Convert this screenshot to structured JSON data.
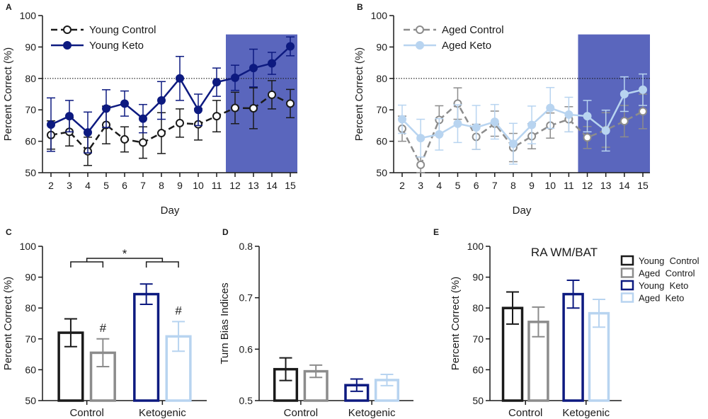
{
  "colors": {
    "young_control": "#1a1a1a",
    "aged_control": "#8c8c8c",
    "young_keto": "#0d1a80",
    "aged_keto": "#b8d4f0",
    "shade": "#5a66bd"
  },
  "chart_data": [
    {
      "panel": "A",
      "type": "line",
      "xlabel": "Day",
      "ylabel": "Percent Correct (%)",
      "ylim": [
        50,
        100
      ],
      "yticks": [
        "50",
        "60",
        "70",
        "80",
        "90",
        "100"
      ],
      "x": [
        "2",
        "3",
        "4",
        "5",
        "6",
        "7",
        "8",
        "9",
        "10",
        "11",
        "12",
        "13",
        "14",
        "15"
      ],
      "reference_line": 80,
      "shaded_from_day": 11.5,
      "series": [
        {
          "name": "Young Control",
          "key": "young_control",
          "style": "dashed-open",
          "values": [
            62.0,
            63.0,
            56.8,
            65.2,
            60.6,
            59.6,
            62.6,
            65.8,
            65.4,
            68.0,
            70.6,
            70.5,
            74.8,
            72.0
          ],
          "errors": [
            4.5,
            4.5,
            4.5,
            6.0,
            4.0,
            5.0,
            6.5,
            4.5,
            5.0,
            5.0,
            5.0,
            6.5,
            4.5,
            4.5
          ]
        },
        {
          "name": "Young Keto",
          "key": "young_keto",
          "style": "solid-filled",
          "values": [
            65.3,
            68.0,
            62.8,
            70.4,
            72.0,
            67.2,
            73.0,
            80.0,
            70.0,
            78.8,
            80.2,
            83.3,
            84.8,
            90.2
          ],
          "errors": [
            8.5,
            5.0,
            6.5,
            6.0,
            4.0,
            4.5,
            6.0,
            7.0,
            5.0,
            4.5,
            4.0,
            6.0,
            3.5,
            3.0
          ]
        }
      ]
    },
    {
      "panel": "B",
      "type": "line",
      "xlabel": "Day",
      "ylabel": "Percent Correct (%)",
      "ylim": [
        50,
        100
      ],
      "yticks": [
        "50",
        "60",
        "70",
        "80",
        "90",
        "100"
      ],
      "x": [
        "2",
        "3",
        "4",
        "5",
        "6",
        "7",
        "8",
        "9",
        "10",
        "11",
        "12",
        "13",
        "14",
        "15"
      ],
      "reference_line": 80,
      "shaded_from_day": 11.5,
      "series": [
        {
          "name": "Aged Control",
          "key": "aged_control",
          "style": "dashed-open",
          "values": [
            64.0,
            52.5,
            66.8,
            72.0,
            61.4,
            65.6,
            58.0,
            61.6,
            65.0,
            67.0,
            61.2,
            63.6,
            66.4,
            69.5
          ],
          "errors": [
            4.0,
            2.5,
            4.5,
            5.0,
            4.0,
            4.0,
            4.5,
            4.0,
            4.0,
            4.0,
            3.5,
            5.5,
            5.0,
            5.5
          ]
        },
        {
          "name": "Aged Keto",
          "key": "aged_keto",
          "style": "solid-filled",
          "values": [
            67.0,
            61.0,
            62.2,
            65.6,
            64.4,
            66.2,
            59.2,
            65.2,
            70.6,
            68.5,
            68.0,
            63.4,
            75.0,
            76.4
          ],
          "errors": [
            4.5,
            6.0,
            5.0,
            6.0,
            7.0,
            5.5,
            6.5,
            6.0,
            6.5,
            5.5,
            5.0,
            6.5,
            5.5,
            5.0
          ]
        }
      ]
    },
    {
      "panel": "C",
      "type": "bar",
      "ylabel": "Percent Correct (%)",
      "ylim": [
        50,
        100
      ],
      "yticks": [
        "50",
        "60",
        "70",
        "80",
        "90",
        "100"
      ],
      "categories": [
        "Control",
        "Ketogenic"
      ],
      "series": [
        {
          "name": "Young Control",
          "key": "young_control",
          "category": 0,
          "value": 72.0,
          "error": 4.5
        },
        {
          "name": "Aged Control",
          "key": "aged_control",
          "category": 0,
          "value": 65.5,
          "error": 4.5
        },
        {
          "name": "Young Keto",
          "key": "young_keto",
          "category": 1,
          "value": 84.5,
          "error": 3.3
        },
        {
          "name": "Aged Keto",
          "key": "aged_keto",
          "category": 1,
          "value": 70.8,
          "error": 4.8
        }
      ],
      "annotations": {
        "comparison": "*",
        "aged_vs_young": "#"
      }
    },
    {
      "panel": "D",
      "type": "bar",
      "ylabel": "Turn Bias Indices",
      "ylim": [
        0.5,
        0.8
      ],
      "yticks": [
        "0.5",
        "0.6",
        "0.7",
        "0.8"
      ],
      "categories": [
        "Control",
        "Ketogenic"
      ],
      "series": [
        {
          "name": "Young Control",
          "key": "young_control",
          "category": 0,
          "value": 0.561,
          "error": 0.022
        },
        {
          "name": "Aged Control",
          "key": "aged_control",
          "category": 0,
          "value": 0.557,
          "error": 0.012
        },
        {
          "name": "Young Keto",
          "key": "young_keto",
          "category": 1,
          "value": 0.53,
          "error": 0.012
        },
        {
          "name": "Aged Keto",
          "key": "aged_keto",
          "category": 1,
          "value": 0.54,
          "error": 0.011
        }
      ]
    },
    {
      "panel": "E",
      "type": "bar",
      "title": "RA WM/BAT",
      "ylabel": "Percent Correct (%)",
      "ylim": [
        50,
        100
      ],
      "yticks": [
        "50",
        "60",
        "70",
        "80",
        "90",
        "100"
      ],
      "categories": [
        "Control",
        "Ketogenic"
      ],
      "series": [
        {
          "name": "Young Control",
          "key": "young_control",
          "category": 0,
          "value": 80.0,
          "error": 5.2
        },
        {
          "name": "Aged Control",
          "key": "aged_control",
          "category": 0,
          "value": 75.5,
          "error": 4.8
        },
        {
          "name": "Young Keto",
          "key": "young_keto",
          "category": 1,
          "value": 84.5,
          "error": 4.5
        },
        {
          "name": "Aged Keto",
          "key": "aged_keto",
          "category": 1,
          "value": 78.3,
          "error": 4.5
        }
      ],
      "legend": [
        "Young  Control",
        "Aged  Control",
        "Young  Keto",
        "Aged  Keto"
      ]
    }
  ]
}
